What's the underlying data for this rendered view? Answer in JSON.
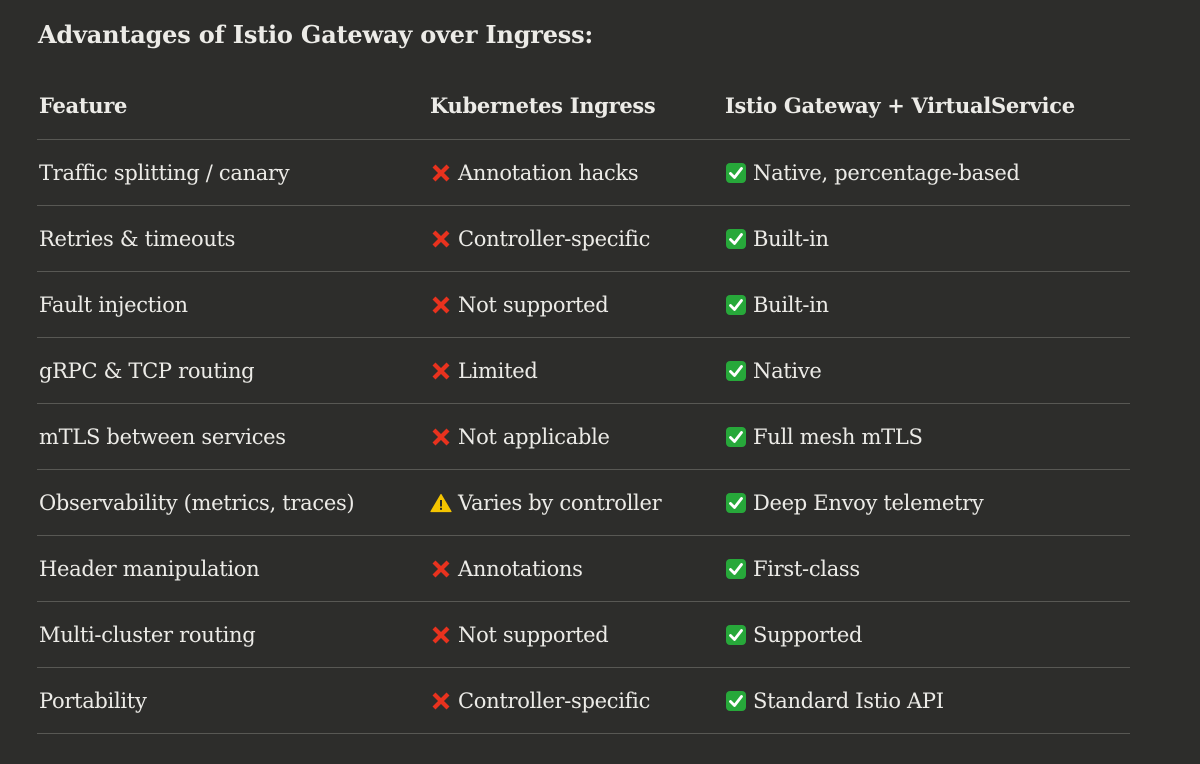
{
  "title": "Advantages of Istio Gateway over Ingress:",
  "headers": [
    "Feature",
    "Kubernetes Ingress",
    "Istio Gateway + VirtualService"
  ],
  "icons": {
    "no": "cross-mark-icon",
    "warn": "warning-icon",
    "yes": "check-mark-icon"
  },
  "colors": {
    "cross": "#e8321e",
    "warning": "#f4c400",
    "check": "#27a83a"
  },
  "rows": [
    {
      "feature": "Traffic splitting / canary",
      "ingress": {
        "status": "no",
        "text": "Annotation hacks"
      },
      "istio": {
        "status": "yes",
        "text": "Native, percentage-based"
      }
    },
    {
      "feature": "Retries & timeouts",
      "ingress": {
        "status": "no",
        "text": "Controller-specific"
      },
      "istio": {
        "status": "yes",
        "text": "Built-in"
      }
    },
    {
      "feature": "Fault injection",
      "ingress": {
        "status": "no",
        "text": "Not supported"
      },
      "istio": {
        "status": "yes",
        "text": "Built-in"
      }
    },
    {
      "feature": "gRPC & TCP routing",
      "ingress": {
        "status": "no",
        "text": "Limited"
      },
      "istio": {
        "status": "yes",
        "text": "Native"
      }
    },
    {
      "feature": "mTLS between services",
      "ingress": {
        "status": "no",
        "text": "Not applicable"
      },
      "istio": {
        "status": "yes",
        "text": "Full mesh mTLS"
      }
    },
    {
      "feature": "Observability (metrics, traces)",
      "ingress": {
        "status": "warn",
        "text": "Varies by controller"
      },
      "istio": {
        "status": "yes",
        "text": "Deep Envoy telemetry"
      }
    },
    {
      "feature": "Header manipulation",
      "ingress": {
        "status": "no",
        "text": "Annotations"
      },
      "istio": {
        "status": "yes",
        "text": "First-class"
      }
    },
    {
      "feature": "Multi-cluster routing",
      "ingress": {
        "status": "no",
        "text": "Not supported"
      },
      "istio": {
        "status": "yes",
        "text": "Supported"
      }
    },
    {
      "feature": "Portability",
      "ingress": {
        "status": "no",
        "text": "Controller-specific"
      },
      "istio": {
        "status": "yes",
        "text": "Standard Istio API"
      }
    }
  ]
}
